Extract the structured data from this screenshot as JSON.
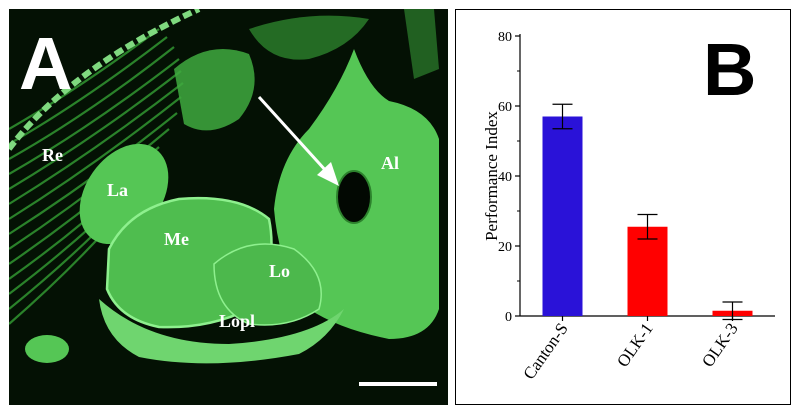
{
  "panel_a": {
    "letter": "A",
    "region_labels": {
      "re": "Re",
      "la": "La",
      "me": "Me",
      "lo": "Lo",
      "lopl": "Lopl",
      "al": "Al"
    },
    "colors": {
      "tissue": "#55c655",
      "background": "#041104",
      "highlight": "#8ef08e"
    }
  },
  "panel_b": {
    "letter": "B"
  },
  "chart_data": {
    "type": "bar",
    "categories": [
      "Canton-S",
      "OLK-1",
      "OLK-3"
    ],
    "values": [
      57,
      25.5,
      1.5
    ],
    "errors": [
      3.5,
      3.5,
      2.5
    ],
    "colors": [
      "#2a12d8",
      "#ff0000",
      "#ff0000"
    ],
    "title": "",
    "xlabel": "",
    "ylabel": "Performance Index",
    "ylim": [
      0,
      80
    ],
    "yticks": [
      "0",
      "20",
      "40",
      "60",
      "80"
    ],
    "grid": false,
    "legend": "none"
  }
}
